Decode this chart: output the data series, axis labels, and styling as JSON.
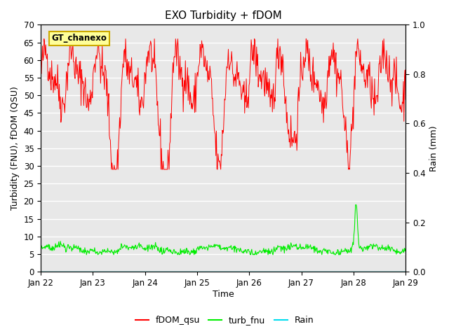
{
  "title": "EXO Turbidity + fDOM",
  "ylabel_left": "Turbidity (FNU), fDOM (QSU)",
  "ylabel_right": "Rain (mm)",
  "xlabel": "Time",
  "annotation_text": "GT_chanexo",
  "ylim_left": [
    0,
    70
  ],
  "ylim_right": [
    0,
    1.0
  ],
  "yticks_left": [
    0,
    5,
    10,
    15,
    20,
    25,
    30,
    35,
    40,
    45,
    50,
    55,
    60,
    65,
    70
  ],
  "yticks_right": [
    0.0,
    0.2,
    0.4,
    0.6,
    0.8,
    1.0
  ],
  "xtick_labels": [
    "Jan 22",
    "Jan 23",
    "Jan 24",
    "Jan 25",
    "Jan 26",
    "Jan 27",
    "Jan 28",
    "Jan 29"
  ],
  "fdom_color": "#FF0000",
  "turb_color": "#00EE00",
  "rain_color": "#00DDEE",
  "bg_color": "#E8E8E8",
  "grid_color": "#FFFFFF",
  "annotation_bg": "#FFFF99",
  "annotation_border": "#CCAA00",
  "legend_labels": [
    "fDOM_qsu",
    "turb_fnu",
    "Rain"
  ],
  "title_fontsize": 11,
  "axis_label_fontsize": 9,
  "tick_fontsize": 8.5
}
